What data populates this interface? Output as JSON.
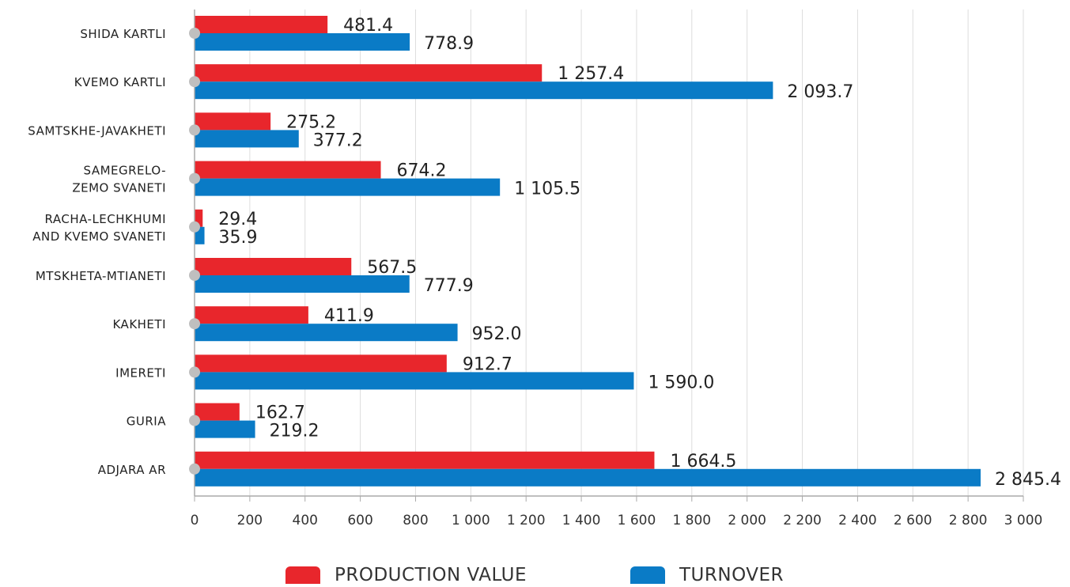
{
  "colors": {
    "production": "#e8262c",
    "turnover": "#0a7bc6",
    "grid": "#dddddd",
    "axis": "#aaaaaa",
    "text": "#222222",
    "marker": "#bfbfbf"
  },
  "legend": {
    "production_label": "PRODUCTION VALUE",
    "turnover_label": "TURNOVER"
  },
  "chart_data": {
    "type": "bar",
    "orientation": "horizontal",
    "title": "",
    "xlabel": "",
    "ylabel": "",
    "xlim": [
      0,
      3000
    ],
    "x_ticks": [
      0,
      200,
      400,
      600,
      800,
      1000,
      1200,
      1400,
      1600,
      1800,
      2000,
      2200,
      2400,
      2600,
      2800,
      3000
    ],
    "x_tick_labels": [
      "0",
      "200",
      "400",
      "600",
      "800",
      "1 000",
      "1 200",
      "1 400",
      "1 600",
      "1 800",
      "2 000",
      "2 200",
      "2 400",
      "2 600",
      "2 800",
      "3 000"
    ],
    "grid": true,
    "legend_position": "bottom",
    "categories": [
      [
        "SHIDA KARTLI"
      ],
      [
        "KVEMO KARTLI"
      ],
      [
        "SAMTSKHE-JAVAKHETI"
      ],
      [
        "SAMEGRELO-",
        "ZEMO SVANETI"
      ],
      [
        "RACHA-LECHKHUMI",
        "AND KVEMO SVANETI"
      ],
      [
        "MTSKHETA-MTIANETI"
      ],
      [
        "KAKHETI"
      ],
      [
        "IMERETI"
      ],
      [
        "GURIA"
      ],
      [
        "ADJARA AR"
      ]
    ],
    "series": [
      {
        "name": "PRODUCTION VALUE",
        "values": [
          481.4,
          1257.4,
          275.2,
          674.2,
          29.4,
          567.5,
          411.9,
          912.7,
          162.7,
          1664.5
        ],
        "labels": [
          "481.4",
          "1 257.4",
          "275.2",
          "674.2",
          "29.4",
          "567.5",
          "411.9",
          "912.7",
          "162.7",
          "1 664.5"
        ]
      },
      {
        "name": "TURNOVER",
        "values": [
          778.9,
          2093.7,
          377.2,
          1105.5,
          35.9,
          777.9,
          952.0,
          1590.0,
          219.2,
          2845.4
        ],
        "labels": [
          "778.9",
          "2 093.7",
          "377.2",
          "1 105.5",
          "35.9",
          "777.9",
          "952.0",
          "1 590.0",
          "219.2",
          "2 845.4"
        ]
      }
    ]
  }
}
